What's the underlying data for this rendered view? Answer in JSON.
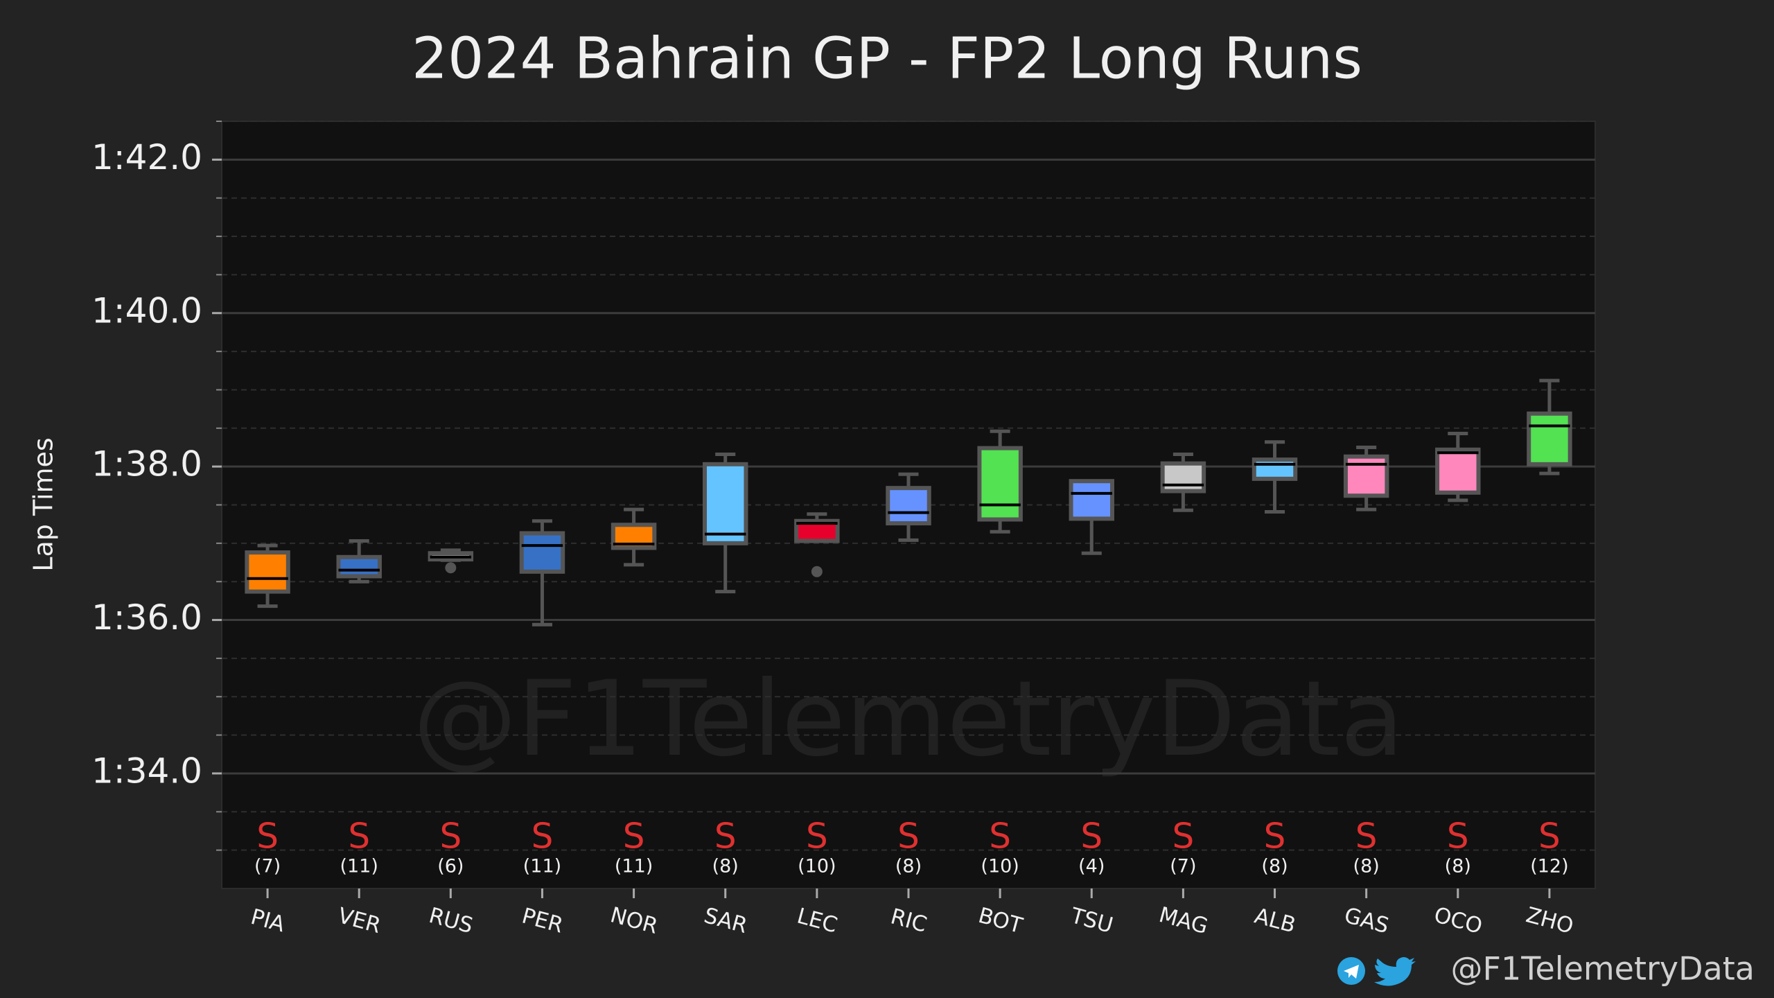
{
  "chart_data": {
    "type": "box",
    "title": "2024 Bahrain GP - FP2 Long Runs",
    "y_label": "Lap Times",
    "watermark": "@F1TelemetryData",
    "credit": "@F1TelemetryData",
    "categories": [
      "PIA",
      "VER",
      "RUS",
      "PER",
      "NOR",
      "SAR",
      "LEC",
      "RIC",
      "BOT",
      "TSU",
      "MAG",
      "ALB",
      "GAS",
      "OCO",
      "ZHO"
    ],
    "colors": [
      "#ff8000",
      "#3671c6",
      "#d4d4d4",
      "#3671c6",
      "#ff8000",
      "#64c4ff",
      "#e8002d",
      "#6692ff",
      "#52e252",
      "#6692ff",
      "#c8c8c8",
      "#64c4ff",
      "#ff87bc",
      "#ff87bc",
      "#52e252"
    ],
    "compounds": [
      "S",
      "S",
      "S",
      "S",
      "S",
      "S",
      "S",
      "S",
      "S",
      "S",
      "S",
      "S",
      "S",
      "S",
      "S"
    ],
    "compound_color": "#e03030",
    "laps": [
      7,
      11,
      6,
      11,
      11,
      8,
      10,
      8,
      10,
      4,
      7,
      8,
      8,
      8,
      12
    ],
    "lap_labels": [
      "(7)",
      "(11)",
      "(6)",
      "(11)",
      "(11)",
      "(8)",
      "(10)",
      "(8)",
      "(10)",
      "(4)",
      "(7)",
      "(8)",
      "(8)",
      "(8)",
      "(12)"
    ],
    "boxes": [
      {
        "whislo": 96.18,
        "q1": 96.37,
        "med": 96.54,
        "q3": 96.88,
        "whishi": 96.97,
        "fliers": []
      },
      {
        "whislo": 96.5,
        "q1": 96.57,
        "med": 96.65,
        "q3": 96.82,
        "whishi": 97.03,
        "fliers": []
      },
      {
        "whislo": 96.78,
        "q1": 96.79,
        "med": 96.82,
        "q3": 96.87,
        "whishi": 96.91,
        "fliers": [
          96.68
        ]
      },
      {
        "whislo": 95.94,
        "q1": 96.63,
        "med": 96.97,
        "q3": 97.13,
        "whishi": 97.29,
        "fliers": []
      },
      {
        "whislo": 96.72,
        "q1": 96.94,
        "med": 96.99,
        "q3": 97.24,
        "whishi": 97.44,
        "fliers": []
      },
      {
        "whislo": 96.37,
        "q1": 97.0,
        "med": 97.12,
        "q3": 98.03,
        "whishi": 98.16,
        "fliers": []
      },
      {
        "whislo": 97.03,
        "q1": 97.03,
        "med": 97.26,
        "q3": 97.29,
        "whishi": 97.38,
        "fliers": [
          96.63
        ]
      },
      {
        "whislo": 97.04,
        "q1": 97.26,
        "med": 97.4,
        "q3": 97.72,
        "whishi": 97.9,
        "fliers": []
      },
      {
        "whislo": 97.15,
        "q1": 97.31,
        "med": 97.5,
        "q3": 98.24,
        "whishi": 98.46,
        "fliers": []
      },
      {
        "whislo": 96.87,
        "q1": 97.32,
        "med": 97.65,
        "q3": 97.81,
        "whishi": 97.81,
        "fliers": []
      },
      {
        "whislo": 97.43,
        "q1": 97.68,
        "med": 97.76,
        "q3": 98.04,
        "whishi": 98.16,
        "fliers": []
      },
      {
        "whislo": 97.41,
        "q1": 97.84,
        "med": 98.03,
        "q3": 98.09,
        "whishi": 98.32,
        "fliers": []
      },
      {
        "whislo": 97.44,
        "q1": 97.62,
        "med": 98.03,
        "q3": 98.13,
        "whishi": 98.25,
        "fliers": []
      },
      {
        "whislo": 97.56,
        "q1": 97.66,
        "med": 98.18,
        "q3": 98.22,
        "whishi": 98.43,
        "fliers": []
      },
      {
        "whislo": 97.91,
        "q1": 98.03,
        "med": 98.53,
        "q3": 98.69,
        "whishi": 99.12,
        "fliers": []
      }
    ],
    "ylim": [
      92.5,
      102.5
    ],
    "yticks": [
      {
        "value": 94,
        "label": "1:34.0"
      },
      {
        "value": 96,
        "label": "1:36.0"
      },
      {
        "value": 98,
        "label": "1:38.0"
      },
      {
        "value": 100,
        "label": "1:40.0"
      },
      {
        "value": 102,
        "label": "1:42.0"
      }
    ],
    "yminor_ticks": [
      93,
      93.5,
      94.5,
      95,
      95.5,
      96.5,
      97,
      97.5,
      98.5,
      99,
      99.5,
      100.5,
      101,
      101.5,
      102.5
    ],
    "grid": true
  }
}
